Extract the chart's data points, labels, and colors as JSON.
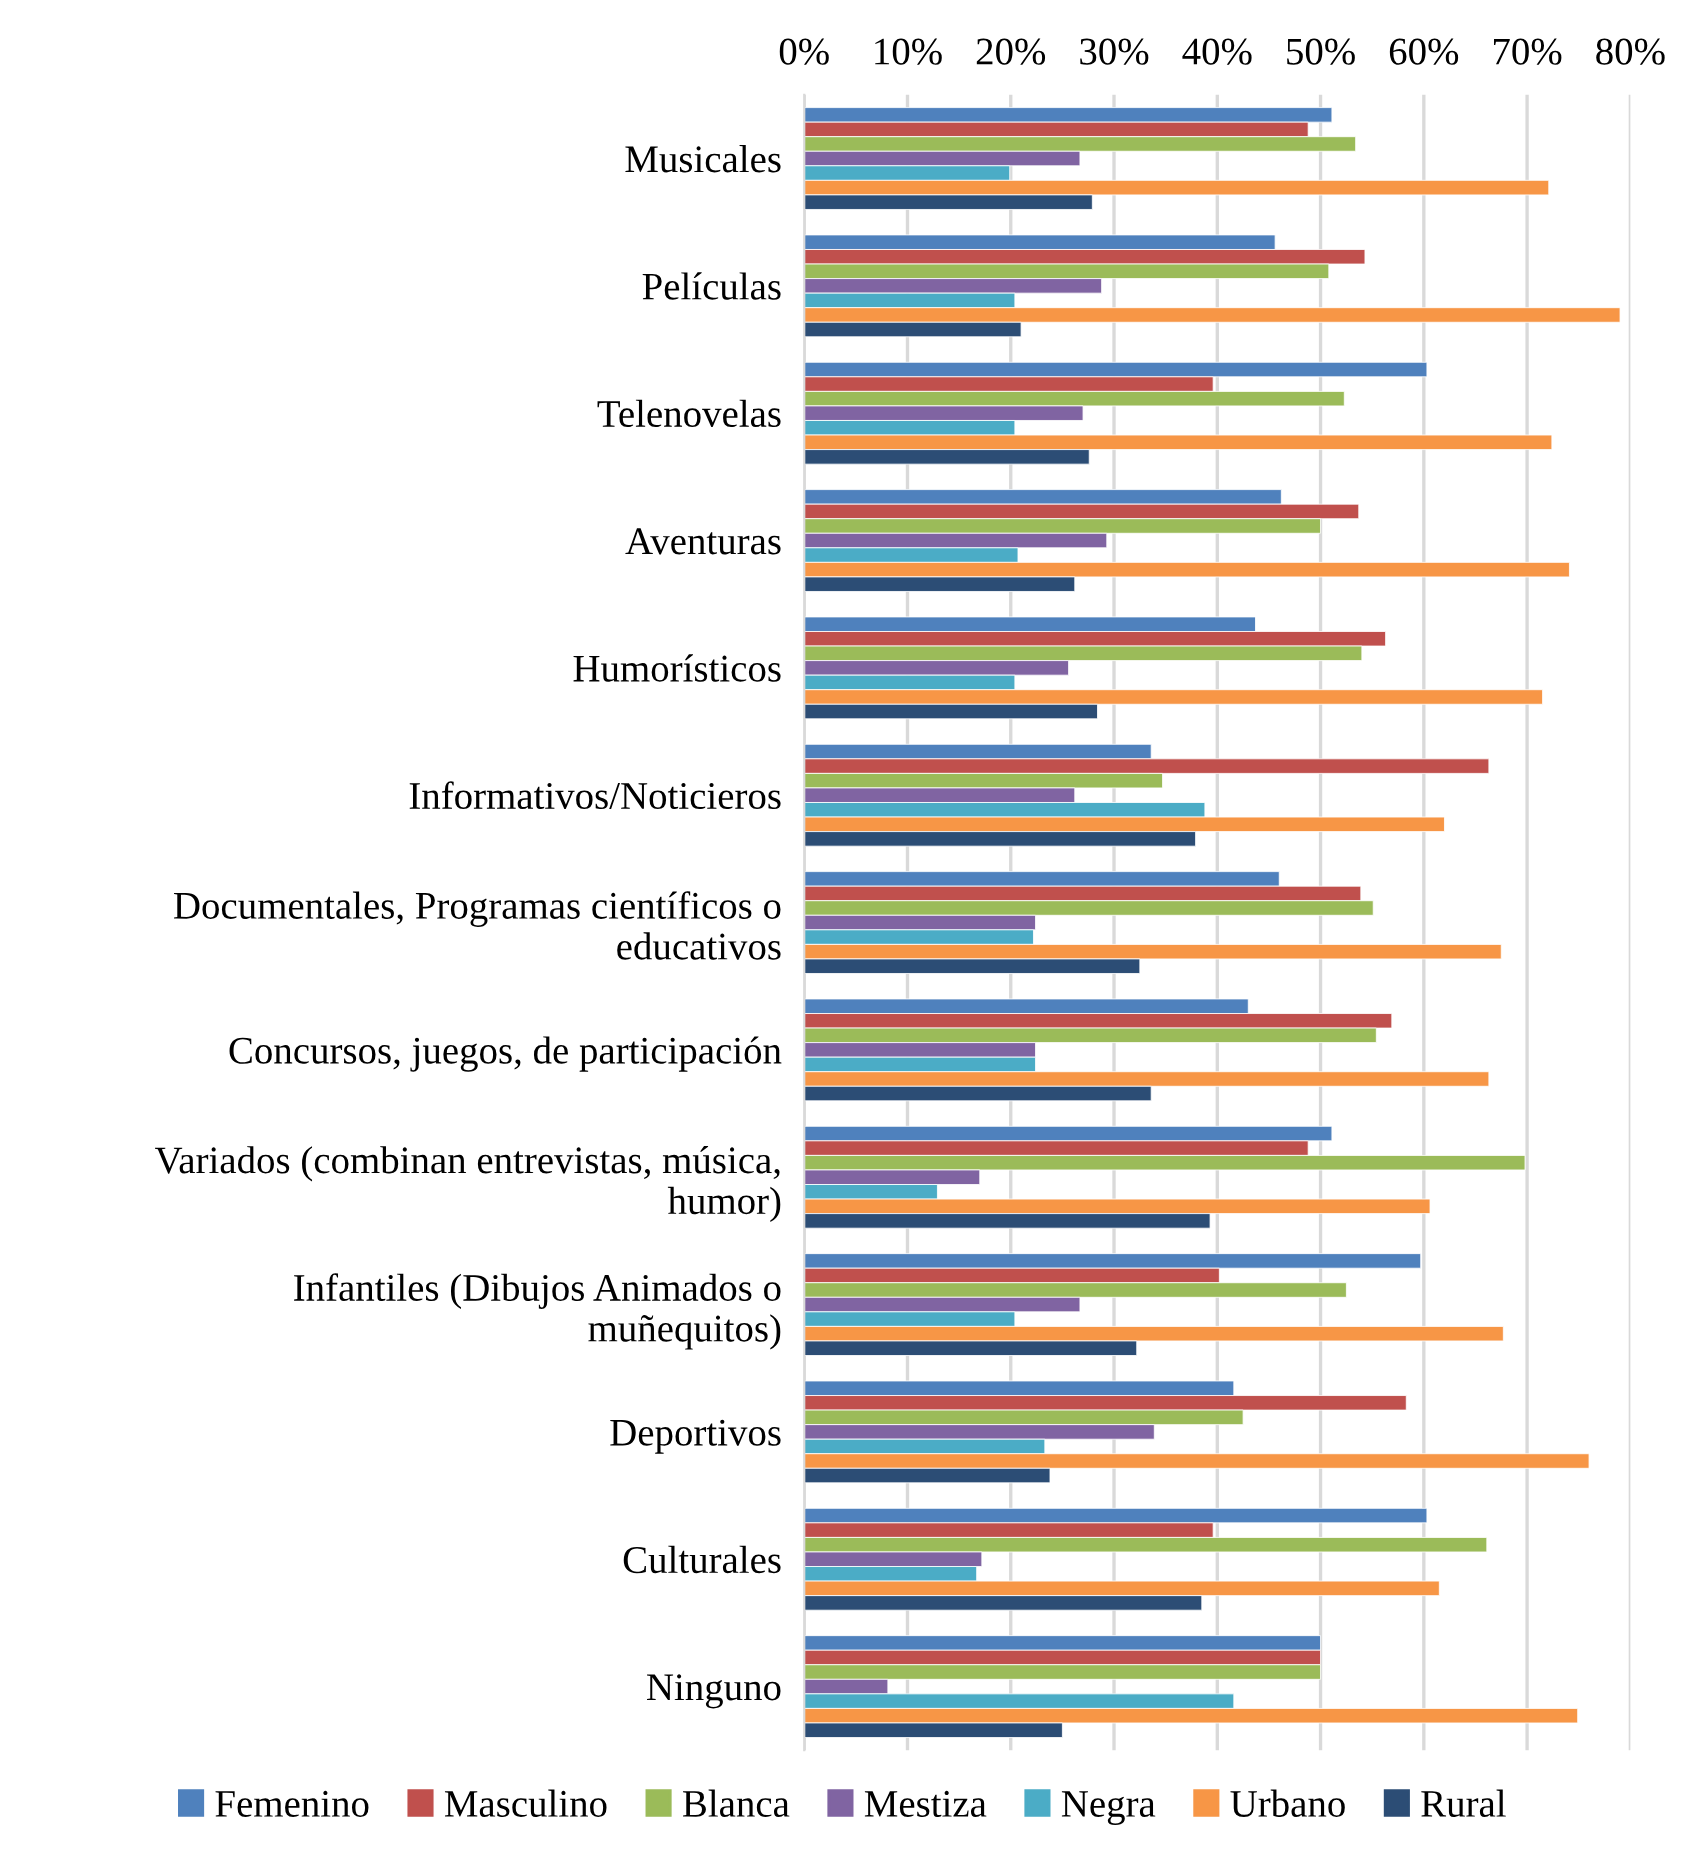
{
  "chart_data": {
    "type": "bar",
    "orientation": "horizontal",
    "categories": [
      "Musicales",
      "Películas",
      "Telenovelas",
      "Aventuras",
      "Humorísticos",
      "Informativos/Noticieros",
      "Documentales, Programas científicos o\neducativos",
      "Concursos, juegos, de participación",
      "Variados (combinan entrevistas, música,\nhumor)",
      "Infantiles (Dibujos Animados o\nmuñequitos)",
      "Deportivos",
      "Culturales",
      "Ninguno"
    ],
    "series": [
      {
        "name": "Femenino",
        "color": "#4f81bd",
        "values": [
          51.1,
          45.6,
          60.3,
          46.2,
          43.7,
          33.6,
          46.0,
          43.0,
          51.1,
          59.7,
          41.6,
          60.3,
          50.0
        ]
      },
      {
        "name": "Masculino",
        "color": "#c0504d",
        "values": [
          48.8,
          54.3,
          39.6,
          53.7,
          56.3,
          66.3,
          53.9,
          56.9,
          48.8,
          40.2,
          58.3,
          39.6,
          50.0
        ]
      },
      {
        "name": "Blanca",
        "color": "#9bbb59",
        "values": [
          53.4,
          50.8,
          52.3,
          50.0,
          54.0,
          34.7,
          55.1,
          55.4,
          69.8,
          52.5,
          42.5,
          66.1,
          50.0
        ]
      },
      {
        "name": "Mestiza",
        "color": "#8064a2",
        "values": [
          26.7,
          28.8,
          27.0,
          29.3,
          25.6,
          26.2,
          22.4,
          22.4,
          17.0,
          26.7,
          33.9,
          17.2,
          8.1
        ]
      },
      {
        "name": "Negra",
        "color": "#4bacc6",
        "values": [
          19.9,
          20.4,
          20.4,
          20.7,
          20.4,
          38.8,
          22.2,
          22.4,
          12.9,
          20.4,
          23.3,
          16.7,
          41.6
        ]
      },
      {
        "name": "Urbano",
        "color": "#f79646",
        "values": [
          72.1,
          79.0,
          72.4,
          74.1,
          71.5,
          62.0,
          67.5,
          66.3,
          60.6,
          67.7,
          76.0,
          61.5,
          74.9
        ]
      },
      {
        "name": "Rural",
        "color": "#2c4d75",
        "values": [
          27.9,
          21.0,
          27.6,
          26.2,
          28.4,
          37.9,
          32.5,
          33.6,
          39.3,
          32.2,
          23.8,
          38.5,
          25.0
        ]
      }
    ],
    "xlim": [
      0,
      80
    ],
    "xticks": [
      {
        "value": 0,
        "label": "0%"
      },
      {
        "value": 10,
        "label": "10%"
      },
      {
        "value": 20,
        "label": "20%"
      },
      {
        "value": 30,
        "label": "30%"
      },
      {
        "value": 40,
        "label": "40%"
      },
      {
        "value": 50,
        "label": "50%"
      },
      {
        "value": 60,
        "label": "60%"
      },
      {
        "value": 70,
        "label": "70%"
      },
      {
        "value": 80,
        "label": "80%"
      }
    ],
    "grid": "x",
    "legend": "bottom"
  }
}
